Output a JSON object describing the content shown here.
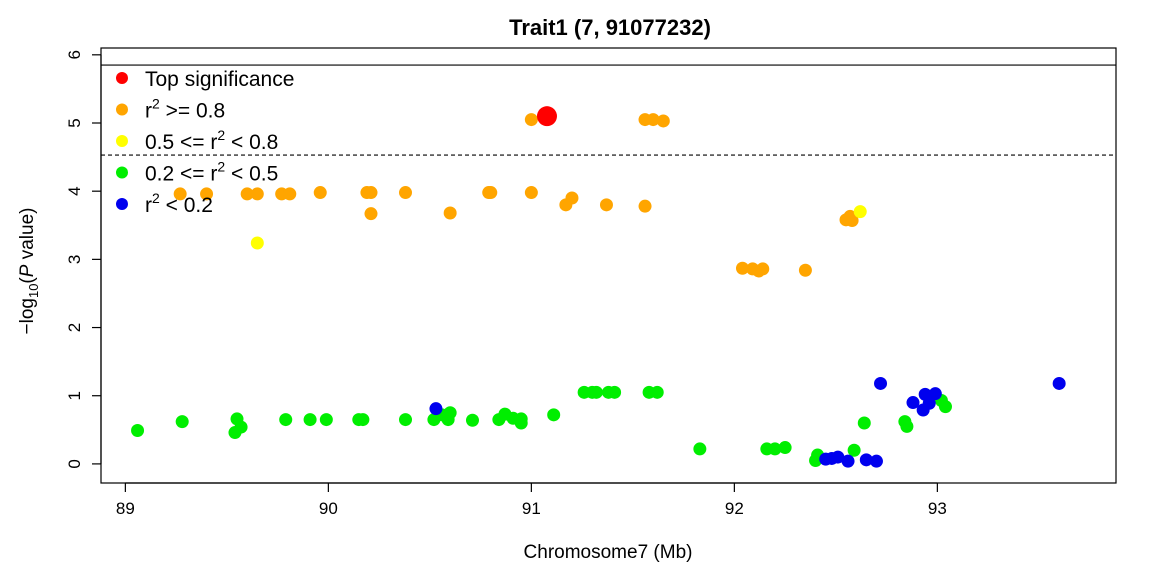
{
  "chart_data": {
    "type": "scatter",
    "title": "Trait1 (7, 91077232)",
    "xlabel": "Chromosome7 (Mb)",
    "ylabel_parts": {
      "pre": "−log",
      "sub": "10",
      "mid": "(",
      "italic": "P",
      "post": " value)"
    },
    "xlim": [
      88.88,
      93.88
    ],
    "ylim": [
      -0.28,
      6.1
    ],
    "x_ticks": [
      89,
      90,
      91,
      92,
      93
    ],
    "y_ticks": [
      0,
      1,
      2,
      3,
      4,
      5,
      6
    ],
    "grid": false,
    "legend_position": "top-left",
    "thresholds": [
      {
        "y": 5.85,
        "style": "solid"
      },
      {
        "y": 4.53,
        "style": "dashed"
      }
    ],
    "top_hit": {
      "x": 91.077,
      "y": 5.1
    },
    "series": [
      {
        "name_parts": {
          "pre": "Top significance"
        },
        "color": "#ff0000",
        "points": [
          [
            91.077,
            5.1
          ]
        ]
      },
      {
        "name_parts": {
          "pre": "r",
          "sup": "2",
          "post": " >= 0.8"
        },
        "color": "#ffa500",
        "points": [
          [
            89.27,
            3.96
          ],
          [
            89.4,
            3.96
          ],
          [
            89.6,
            3.96
          ],
          [
            89.65,
            3.96
          ],
          [
            89.77,
            3.96
          ],
          [
            89.81,
            3.96
          ],
          [
            89.96,
            3.98
          ],
          [
            90.19,
            3.98
          ],
          [
            90.21,
            3.98
          ],
          [
            90.38,
            3.98
          ],
          [
            90.79,
            3.98
          ],
          [
            90.8,
            3.98
          ],
          [
            91.0,
            3.98
          ],
          [
            91.0,
            5.05
          ],
          [
            91.17,
            3.8
          ],
          [
            91.2,
            3.9
          ],
          [
            91.37,
            3.8
          ],
          [
            91.56,
            3.78
          ],
          [
            90.21,
            3.67
          ],
          [
            90.6,
            3.68
          ],
          [
            91.56,
            5.05
          ],
          [
            91.6,
            5.05
          ],
          [
            91.65,
            5.03
          ],
          [
            92.04,
            2.87
          ],
          [
            92.09,
            2.86
          ],
          [
            92.12,
            2.83
          ],
          [
            92.14,
            2.86
          ],
          [
            92.35,
            2.84
          ],
          [
            92.55,
            3.58
          ],
          [
            92.57,
            3.63
          ],
          [
            92.58,
            3.57
          ]
        ]
      },
      {
        "name_parts": {
          "pre": "0.5 <= r",
          "sup": "2",
          "post": " < 0.8"
        },
        "color": "#ffff00",
        "points": [
          [
            89.65,
            3.24
          ],
          [
            92.62,
            3.7
          ]
        ]
      },
      {
        "name_parts": {
          "pre": "0.2 <= r",
          "sup": "2",
          "post": " < 0.5"
        },
        "color": "#00ee00",
        "points": [
          [
            89.06,
            0.49
          ],
          [
            89.28,
            0.62
          ],
          [
            89.54,
            0.46
          ],
          [
            89.55,
            0.66
          ],
          [
            89.57,
            0.54
          ],
          [
            89.79,
            0.65
          ],
          [
            89.91,
            0.65
          ],
          [
            89.99,
            0.65
          ],
          [
            90.15,
            0.65
          ],
          [
            90.17,
            0.65
          ],
          [
            90.38,
            0.65
          ],
          [
            90.52,
            0.65
          ],
          [
            90.56,
            0.72
          ],
          [
            90.59,
            0.65
          ],
          [
            90.6,
            0.75
          ],
          [
            90.71,
            0.64
          ],
          [
            90.84,
            0.65
          ],
          [
            90.87,
            0.73
          ],
          [
            90.91,
            0.67
          ],
          [
            90.95,
            0.6
          ],
          [
            90.95,
            0.66
          ],
          [
            91.11,
            0.72
          ],
          [
            91.26,
            1.05
          ],
          [
            91.3,
            1.05
          ],
          [
            91.32,
            1.05
          ],
          [
            91.38,
            1.05
          ],
          [
            91.41,
            1.05
          ],
          [
            91.58,
            1.05
          ],
          [
            91.62,
            1.05
          ],
          [
            91.83,
            0.22
          ],
          [
            92.16,
            0.22
          ],
          [
            92.2,
            0.22
          ],
          [
            92.25,
            0.24
          ],
          [
            92.4,
            0.05
          ],
          [
            92.41,
            0.13
          ],
          [
            92.59,
            0.2
          ],
          [
            92.64,
            0.6
          ],
          [
            92.84,
            0.62
          ],
          [
            92.85,
            0.55
          ],
          [
            93.02,
            0.93
          ],
          [
            93.04,
            0.84
          ]
        ]
      },
      {
        "name_parts": {
          "pre": "r",
          "sup": "2",
          "post": " < 0.2"
        },
        "color": "#0000ee",
        "points": [
          [
            90.53,
            0.81
          ],
          [
            92.45,
            0.07
          ],
          [
            92.48,
            0.08
          ],
          [
            92.51,
            0.1
          ],
          [
            92.56,
            0.04
          ],
          [
            92.65,
            0.06
          ],
          [
            92.7,
            0.04
          ],
          [
            92.72,
            1.18
          ],
          [
            92.88,
            0.9
          ],
          [
            92.93,
            0.79
          ],
          [
            92.94,
            1.02
          ],
          [
            92.96,
            0.89
          ],
          [
            92.99,
            1.03
          ],
          [
            93.6,
            1.18
          ]
        ]
      }
    ]
  }
}
